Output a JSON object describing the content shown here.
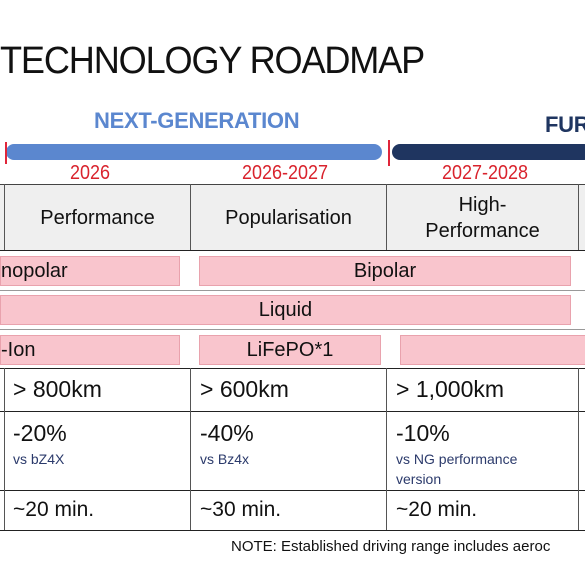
{
  "title": "TECHNOLOGY ROADMAP",
  "phases": {
    "next_generation": "NEXT-GENERATION",
    "further": "FUR"
  },
  "colors": {
    "next_gen_bar": "#5b87cf",
    "further_bar": "#1f3560",
    "year_red": "#d9232d",
    "pink_fill": "#f9c5cd"
  },
  "years": [
    "2026",
    "2026-2027",
    "2027-2028"
  ],
  "columns": {
    "performance": "Performance",
    "popularisation": "Popularisation",
    "high_performance_line1": "High-",
    "high_performance_line2": "Performance"
  },
  "rows": {
    "structure_left": "nopolar",
    "structure_right": "Bipolar",
    "electrolyte": "Liquid",
    "chemistry_left": "-Ion",
    "chemistry_mid": "LiFePO*1",
    "range": [
      "> 800km",
      "> 600km",
      "> 1,000km"
    ],
    "cost": [
      {
        "value": "-20%",
        "note": "vs bZ4X"
      },
      {
        "value": "-40%",
        "note": "vs Bz4x"
      },
      {
        "value": "-10%",
        "note": "vs NG performance version"
      }
    ],
    "charging": [
      "~20 min.",
      "~30 min.",
      "~20 min."
    ]
  },
  "note": "NOTE: Established driving range includes aeroc"
}
